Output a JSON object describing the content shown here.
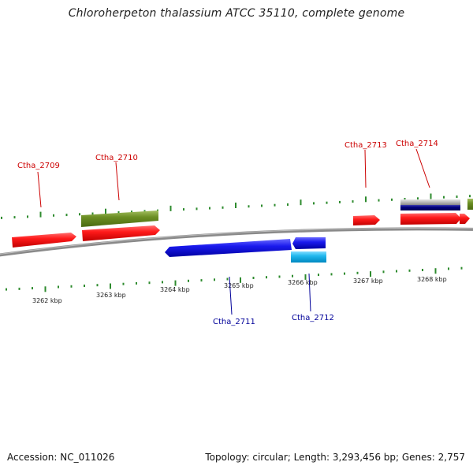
{
  "title": "Chloroherpeton thalassium ATCC 35110, complete genome",
  "footer": {
    "accession": "Accession: NC_011026",
    "summary": "Topology: circular; Length: 3,293,456 bp; Genes: 2,757"
  },
  "colors": {
    "backbone": "#8a8a8a",
    "tick": "#2e8b2e",
    "label_forward": "#cc0000",
    "label_reverse": "#000099",
    "gene_red": "#ff1a1a",
    "gene_olive": "#6b8e23",
    "gene_blue": "#1a1aee",
    "gene_cyan": "#22b8ee",
    "gene_navy": "#000080",
    "gene_grey": "#b8b8b8"
  },
  "scale_labels": [
    "3262 kbp",
    "3263 kbp",
    "3264 kbp",
    "3265 kbp",
    "3266 kbp",
    "3267 kbp",
    "3268 kbp"
  ],
  "gene_labels": [
    {
      "id": "Ctha_2709",
      "strand": "forward"
    },
    {
      "id": "Ctha_2710",
      "strand": "forward"
    },
    {
      "id": "Ctha_2713",
      "strand": "forward"
    },
    {
      "id": "Ctha_2714",
      "strand": "forward"
    },
    {
      "id": "Ctha_2711",
      "strand": "reverse"
    },
    {
      "id": "Ctha_2712",
      "strand": "reverse"
    }
  ]
}
